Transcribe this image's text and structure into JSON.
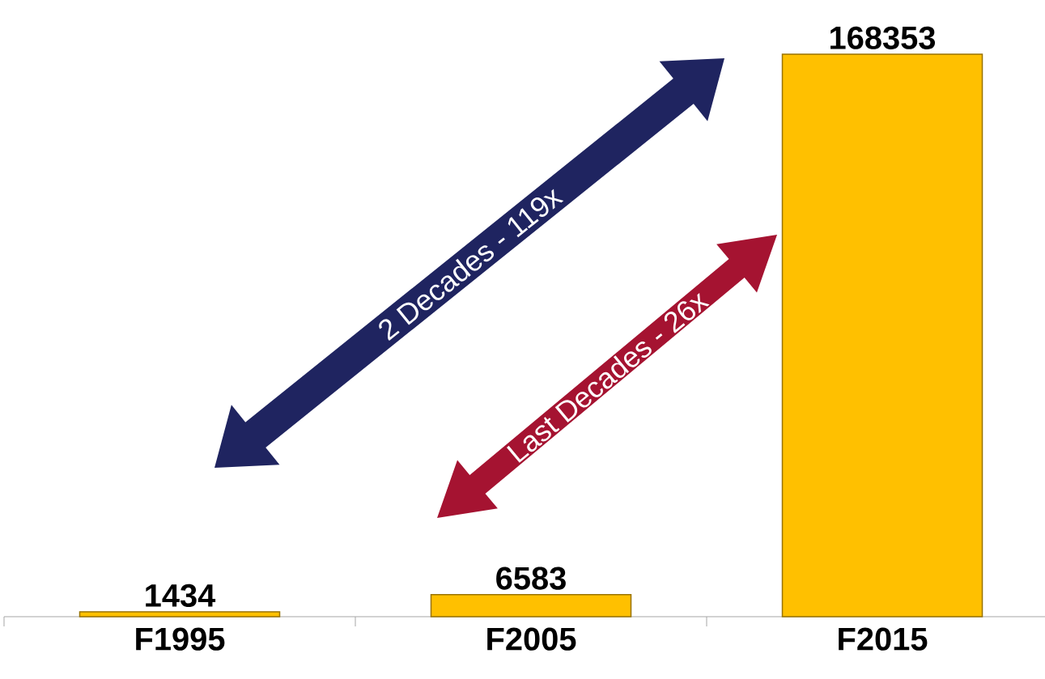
{
  "chart_data": {
    "type": "bar",
    "categories": [
      "F1995",
      "F2005",
      "F2015"
    ],
    "values": [
      1434,
      6583,
      168353
    ],
    "color": "#ffc000",
    "data_labels": true,
    "annotations": [
      "2 Decades - 119x",
      "Last Decades - 26x"
    ]
  }
}
